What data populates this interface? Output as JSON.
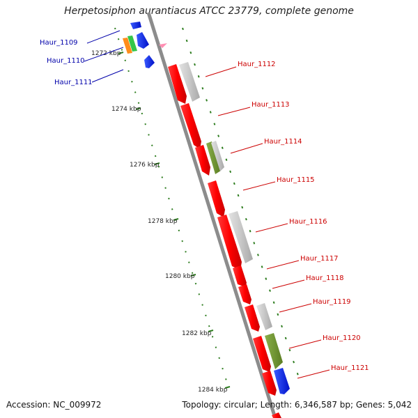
{
  "title": "Herpetosiphon aurantiacus ATCC 23779, complete genome",
  "accession": "Accession: NC_009972",
  "summary": "Topology: circular; Length: 6,346,587 bp; Genes: 5,042",
  "colors": {
    "backbone": "#8c8c8c",
    "forward_label": "#cc0000",
    "reverse_label": "#0000aa",
    "tick": "#2e7d1f"
  },
  "kbp_ticks": [
    "1272 kbp",
    "1274 kbp",
    "1276 kbp",
    "1278 kbp",
    "1280 kbp",
    "1282 kbp",
    "1284 kbp"
  ],
  "reverse_genes": [
    "Haur_1109",
    "Haur_1110",
    "Haur_1111"
  ],
  "forward_genes": [
    "Haur_1112",
    "Haur_1113",
    "Haur_1114",
    "Haur_1115",
    "Haur_1116",
    "Haur_1117",
    "Haur_1118",
    "Haur_1119",
    "Haur_1120",
    "Haur_1121"
  ]
}
